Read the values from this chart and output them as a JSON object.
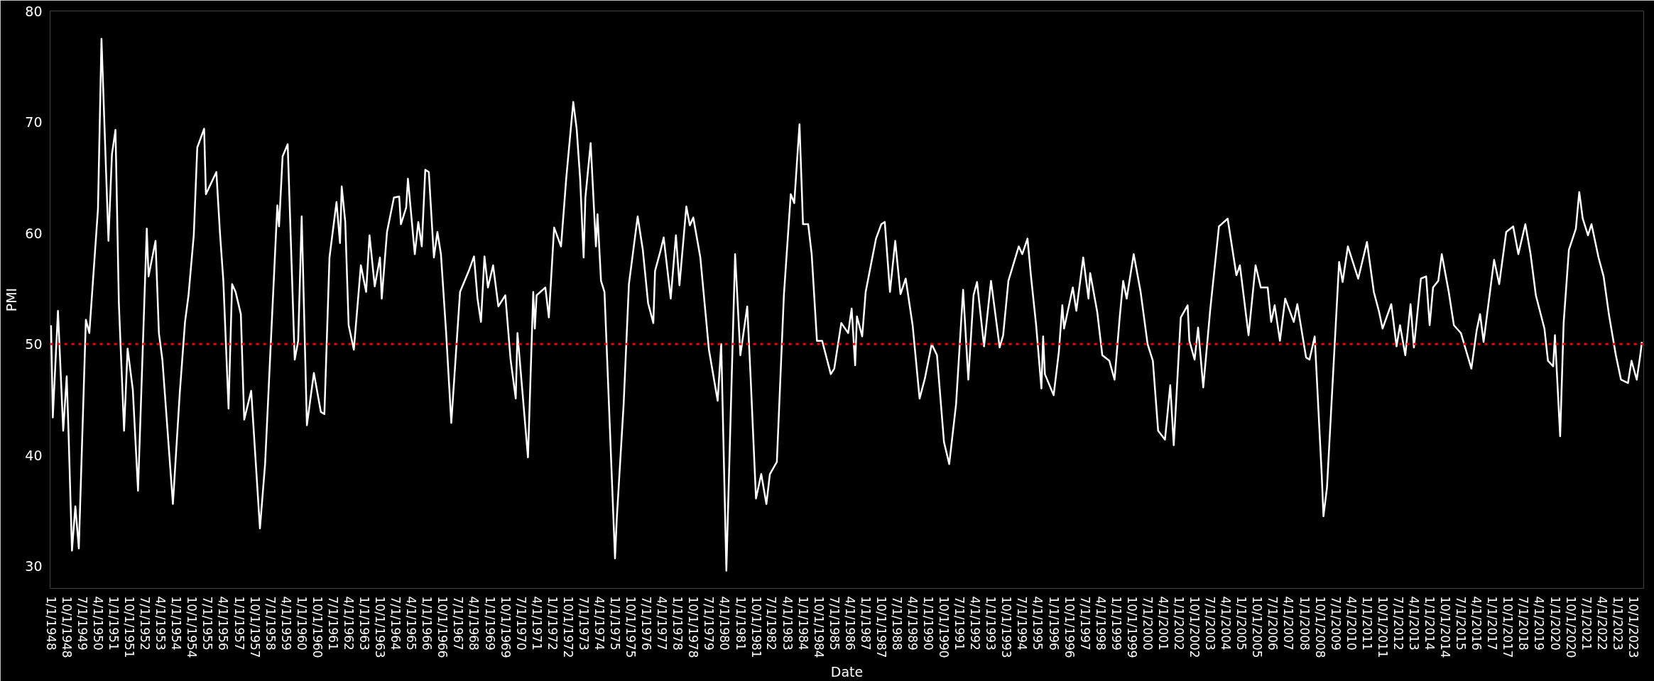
{
  "chart_data": {
    "type": "line",
    "xlabel": "Date",
    "ylabel": "PMI",
    "x": [
      "1948-01",
      "1948-02",
      "1948-05",
      "1948-08",
      "1948-10",
      "1948-11",
      "1949-01",
      "1949-03",
      "1949-05",
      "1949-09",
      "1949-11",
      "1950-04",
      "1950-06",
      "1950-10",
      "1950-12",
      "1951-02",
      "1951-04",
      "1951-07",
      "1951-09",
      "1951-12",
      "1952-03",
      "1952-08",
      "1952-09",
      "1953-01",
      "1953-03",
      "1953-05",
      "1953-11",
      "1954-03",
      "1954-06",
      "1954-08",
      "1954-11",
      "1955-01",
      "1955-05",
      "1955-06",
      "1955-12",
      "1956-02",
      "1956-04",
      "1956-07",
      "1956-09",
      "1956-11",
      "1957-02",
      "1957-04",
      "1957-08",
      "1958-01",
      "1958-04",
      "1958-11",
      "1958-12",
      "1959-02",
      "1959-05",
      "1959-09",
      "1959-11",
      "1960-01",
      "1960-04",
      "1960-08",
      "1960-12",
      "1961-02",
      "1961-05",
      "1961-09",
      "1961-11",
      "1961-12",
      "1962-02",
      "1962-04",
      "1962-07",
      "1962-11",
      "1963-02",
      "1963-04",
      "1963-07",
      "1963-10",
      "1963-11",
      "1964-02",
      "1964-06",
      "1964-09",
      "1964-10",
      "1965-01",
      "1965-02",
      "1965-06",
      "1965-08",
      "1965-10",
      "1965-12",
      "1966-02",
      "1966-05",
      "1966-07",
      "1966-09",
      "1966-12",
      "1967-03",
      "1967-08",
      "1968-01",
      "1968-04",
      "1968-06",
      "1968-08",
      "1968-10",
      "1968-12",
      "1969-03",
      "1969-06",
      "1969-10",
      "1970-01",
      "1970-04",
      "1970-05",
      "1970-11",
      "1971-02",
      "1971-03",
      "1971-04",
      "1971-09",
      "1971-11",
      "1972-02",
      "1972-06",
      "1972-09",
      "1973-01",
      "1973-03",
      "1973-05",
      "1973-07",
      "1973-08",
      "1973-11",
      "1974-02",
      "1974-03",
      "1974-05",
      "1974-07",
      "1975-01",
      "1975-02",
      "1975-06",
      "1975-09",
      "1976-02",
      "1976-05",
      "1976-08",
      "1976-11",
      "1976-12",
      "1977-03",
      "1977-05",
      "1977-09",
      "1977-12",
      "1978-02",
      "1978-06",
      "1978-08",
      "1978-10",
      "1979-02",
      "1979-07",
      "1979-12",
      "1980-02",
      "1980-05",
      "1980-10",
      "1981-01",
      "1981-05",
      "1981-07",
      "1981-10",
      "1982-01",
      "1982-04",
      "1982-06",
      "1982-10",
      "1983-02",
      "1983-06",
      "1983-08",
      "1983-11",
      "1984-01",
      "1984-04",
      "1984-06",
      "1984-09",
      "1984-12",
      "1985-05",
      "1985-07",
      "1985-11",
      "1986-03",
      "1986-05",
      "1986-07",
      "1986-08",
      "1986-11",
      "1987-01",
      "1987-04",
      "1987-07",
      "1987-10",
      "1987-12",
      "1988-03",
      "1988-06",
      "1988-09",
      "1988-12",
      "1989-04",
      "1989-08",
      "1989-11",
      "1990-03",
      "1990-06",
      "1990-10",
      "1991-01",
      "1991-05",
      "1991-09",
      "1991-12",
      "1992-03",
      "1992-05",
      "1992-09",
      "1993-01",
      "1993-06",
      "1993-08",
      "1993-11",
      "1994-05",
      "1994-07",
      "1994-10",
      "1994-12",
      "1995-03",
      "1995-06",
      "1995-07",
      "1995-08",
      "1996-01",
      "1996-04",
      "1996-06",
      "1996-07",
      "1996-12",
      "1997-02",
      "1997-06",
      "1997-09",
      "1997-10",
      "1998-02",
      "1998-05",
      "1998-09",
      "1998-12",
      "1999-03",
      "1999-05",
      "1999-07",
      "1999-11",
      "2000-03",
      "2000-07",
      "2000-10",
      "2001-01",
      "2001-05",
      "2001-08",
      "2001-10",
      "2002-02",
      "2002-06",
      "2002-07",
      "2002-10",
      "2002-12",
      "2003-03",
      "2003-07",
      "2003-12",
      "2004-05",
      "2004-10",
      "2004-12",
      "2005-05",
      "2005-09",
      "2005-12",
      "2006-04",
      "2006-06",
      "2006-08",
      "2006-11",
      "2007-02",
      "2007-07",
      "2007-09",
      "2008-02",
      "2008-04",
      "2008-07",
      "2008-11",
      "2008-12",
      "2009-02",
      "2009-09",
      "2009-11",
      "2010-02",
      "2010-08",
      "2011-01",
      "2011-05",
      "2011-08",
      "2011-10",
      "2012-03",
      "2012-06",
      "2012-08",
      "2012-11",
      "2013-02",
      "2013-04",
      "2013-08",
      "2013-11",
      "2014-01",
      "2014-03",
      "2014-06",
      "2014-08",
      "2014-12",
      "2015-03",
      "2015-07",
      "2016-01",
      "2016-04",
      "2016-06",
      "2016-08",
      "2017-02",
      "2017-05",
      "2017-09",
      "2018-01",
      "2018-04",
      "2018-08",
      "2018-11",
      "2019-02",
      "2019-07",
      "2019-09",
      "2019-12",
      "2020-01",
      "2020-04",
      "2020-06",
      "2020-09",
      "2021-01",
      "2021-03",
      "2021-05",
      "2021-08",
      "2021-10",
      "2022-02",
      "2022-05",
      "2022-08",
      "2022-12",
      "2023-03",
      "2023-07",
      "2023-09",
      "2023-12",
      "2024-02",
      "2024-03"
    ],
    "series": [
      {
        "color": "#ffffff",
        "values": [
          51.7,
          43.4,
          53.0,
          42.2,
          47.1,
          42.2,
          31.4,
          35.4,
          31.6,
          52.2,
          51.0,
          62.2,
          77.5,
          59.3,
          67.1,
          69.3,
          53.7,
          42.2,
          49.6,
          45.9,
          36.8,
          60.4,
          56.1,
          59.3,
          51.0,
          48.6,
          35.6,
          45.6,
          52.0,
          54.4,
          59.8,
          67.7,
          69.4,
          63.5,
          65.5,
          60.1,
          55.7,
          44.2,
          55.4,
          54.7,
          52.7,
          43.2,
          45.8,
          33.4,
          39.2,
          62.5,
          60.6,
          66.9,
          68.0,
          48.6,
          50.3,
          61.5,
          42.7,
          47.4,
          43.9,
          43.7,
          57.8,
          62.8,
          59.1,
          64.2,
          61.0,
          51.7,
          49.5,
          57.1,
          54.7,
          59.8,
          55.2,
          57.8,
          54.1,
          60.1,
          63.2,
          63.3,
          60.8,
          62.3,
          64.9,
          58.1,
          61.0,
          58.8,
          65.7,
          65.5,
          57.8,
          60.1,
          58.1,
          51.0,
          42.9,
          54.7,
          56.6,
          57.9,
          54.1,
          52.0,
          57.9,
          55.1,
          57.1,
          53.4,
          54.4,
          48.6,
          45.1,
          51.0,
          39.8,
          54.7,
          51.4,
          54.4,
          55.1,
          52.4,
          60.5,
          58.8,
          65.0,
          71.8,
          69.4,
          64.9,
          57.8,
          63.2,
          68.1,
          58.8,
          61.7,
          55.7,
          54.7,
          30.7,
          34.3,
          44.6,
          55.4,
          61.5,
          58.5,
          53.7,
          51.9,
          56.6,
          58.3,
          59.6,
          54.1,
          59.8,
          55.3,
          62.4,
          60.7,
          61.4,
          57.8,
          49.5,
          44.9,
          50.0,
          29.6,
          58.1,
          49.0,
          53.4,
          46.8,
          36.1,
          38.3,
          35.6,
          38.3,
          39.4,
          54.4,
          63.5,
          62.7,
          69.8,
          60.8,
          60.8,
          58.1,
          50.3,
          50.3,
          47.3,
          47.8,
          51.9,
          51.0,
          53.2,
          48.1,
          52.5,
          50.7,
          54.7,
          57.1,
          59.5,
          60.8,
          61.0,
          54.7,
          59.3,
          54.5,
          55.9,
          51.7,
          45.1,
          46.9,
          50.0,
          49.0,
          41.2,
          39.2,
          44.6,
          54.9,
          46.8,
          54.4,
          55.6,
          49.8,
          55.7,
          49.7,
          50.8,
          55.7,
          58.8,
          58.1,
          59.5,
          56.1,
          51.7,
          46.0,
          50.7,
          47.3,
          45.4,
          49.3,
          53.5,
          51.4,
          55.1,
          53.0,
          57.8,
          54.1,
          56.4,
          52.9,
          49.0,
          48.5,
          46.8,
          52.4,
          55.7,
          54.1,
          58.1,
          54.7,
          50.0,
          48.5,
          42.2,
          41.4,
          46.3,
          40.9,
          52.4,
          53.5,
          50.3,
          48.6,
          51.5,
          46.1,
          53.1,
          60.6,
          61.3,
          56.2,
          57.1,
          50.8,
          57.1,
          55.1,
          55.1,
          52.0,
          53.5,
          50.3,
          54.1,
          52.0,
          53.6,
          48.8,
          48.6,
          50.7,
          38.2,
          34.5,
          37.1,
          57.4,
          55.6,
          58.8,
          55.9,
          59.2,
          54.7,
          52.9,
          51.4,
          53.6,
          49.8,
          51.7,
          49.0,
          53.6,
          49.7,
          55.9,
          56.1,
          51.7,
          55.1,
          55.7,
          58.1,
          54.7,
          51.7,
          51.0,
          47.8,
          51.2,
          52.7,
          50.2,
          57.6,
          55.4,
          60.1,
          60.6,
          58.1,
          60.8,
          58.1,
          54.4,
          51.4,
          48.5,
          48.0,
          50.8,
          41.7,
          51.9,
          58.5,
          60.4,
          63.7,
          61.3,
          59.8,
          60.8,
          57.8,
          56.1,
          52.7,
          49.0,
          46.8,
          46.5,
          48.5,
          46.8,
          49.0,
          50.2
        ]
      }
    ],
    "xlim": [
      "1947-12-15",
      "2024-04-01"
    ],
    "ylim": [
      28,
      80
    ],
    "yticks": [
      30,
      40,
      50,
      60,
      70,
      80
    ],
    "xticks": [
      {
        "value": "1948-01-01",
        "label": "1/1/1948"
      },
      {
        "value": "1948-10-01",
        "label": "10/1/1948"
      },
      {
        "value": "1949-07-01",
        "label": "7/1/1949"
      },
      {
        "value": "1950-04-01",
        "label": "4/1/1950"
      },
      {
        "value": "1951-01-01",
        "label": "1/1/1951"
      },
      {
        "value": "1951-10-01",
        "label": "10/1/1951"
      },
      {
        "value": "1952-07-01",
        "label": "7/1/1952"
      },
      {
        "value": "1953-04-01",
        "label": "4/1/1953"
      },
      {
        "value": "1954-01-01",
        "label": "1/1/1954"
      },
      {
        "value": "1954-10-01",
        "label": "10/1/1954"
      },
      {
        "value": "1955-07-01",
        "label": "7/1/1955"
      },
      {
        "value": "1956-04-01",
        "label": "4/1/1956"
      },
      {
        "value": "1957-01-01",
        "label": "1/1/1957"
      },
      {
        "value": "1957-10-01",
        "label": "10/1/1957"
      },
      {
        "value": "1958-07-01",
        "label": "7/1/1958"
      },
      {
        "value": "1959-04-01",
        "label": "4/1/1959"
      },
      {
        "value": "1960-01-01",
        "label": "1/1/1960"
      },
      {
        "value": "1960-10-01",
        "label": "10/1/1960"
      },
      {
        "value": "1961-07-01",
        "label": "7/1/1961"
      },
      {
        "value": "1962-04-01",
        "label": "4/1/1962"
      },
      {
        "value": "1963-01-01",
        "label": "1/1/1963"
      },
      {
        "value": "1963-10-01",
        "label": "10/1/1963"
      },
      {
        "value": "1964-07-01",
        "label": "7/1/1964"
      },
      {
        "value": "1965-04-01",
        "label": "4/1/1965"
      },
      {
        "value": "1966-01-01",
        "label": "1/1/1966"
      },
      {
        "value": "1966-10-01",
        "label": "10/1/1966"
      },
      {
        "value": "1967-07-01",
        "label": "7/1/1967"
      },
      {
        "value": "1968-04-01",
        "label": "4/1/1968"
      },
      {
        "value": "1969-01-01",
        "label": "1/1/1969"
      },
      {
        "value": "1969-10-01",
        "label": "10/1/1969"
      },
      {
        "value": "1970-07-01",
        "label": "7/1/1970"
      },
      {
        "value": "1971-04-01",
        "label": "4/1/1971"
      },
      {
        "value": "1972-01-01",
        "label": "1/1/1972"
      },
      {
        "value": "1972-10-01",
        "label": "10/1/1972"
      },
      {
        "value": "1973-07-01",
        "label": "7/1/1973"
      },
      {
        "value": "1974-04-01",
        "label": "4/1/1974"
      },
      {
        "value": "1975-01-01",
        "label": "1/1/1975"
      },
      {
        "value": "1975-10-01",
        "label": "10/1/1975"
      },
      {
        "value": "1976-07-01",
        "label": "7/1/1976"
      },
      {
        "value": "1977-04-01",
        "label": "4/1/1977"
      },
      {
        "value": "1978-01-01",
        "label": "1/1/1978"
      },
      {
        "value": "1978-10-01",
        "label": "10/1/1978"
      },
      {
        "value": "1979-07-01",
        "label": "7/1/1979"
      },
      {
        "value": "1980-04-01",
        "label": "4/1/1980"
      },
      {
        "value": "1981-01-01",
        "label": "1/1/1981"
      },
      {
        "value": "1981-10-01",
        "label": "10/1/1981"
      },
      {
        "value": "1982-07-01",
        "label": "7/1/1982"
      },
      {
        "value": "1983-04-01",
        "label": "4/1/1983"
      },
      {
        "value": "1984-01-01",
        "label": "1/1/1984"
      },
      {
        "value": "1984-10-01",
        "label": "10/1/1984"
      },
      {
        "value": "1985-07-01",
        "label": "7/1/1985"
      },
      {
        "value": "1986-04-01",
        "label": "4/1/1986"
      },
      {
        "value": "1987-01-01",
        "label": "1/1/1987"
      },
      {
        "value": "1987-10-01",
        "label": "10/1/1987"
      },
      {
        "value": "1988-07-01",
        "label": "7/1/1988"
      },
      {
        "value": "1989-04-01",
        "label": "4/1/1989"
      },
      {
        "value": "1990-01-01",
        "label": "1/1/1990"
      },
      {
        "value": "1990-10-01",
        "label": "10/1/1990"
      },
      {
        "value": "1991-07-01",
        "label": "7/1/1991"
      },
      {
        "value": "1992-04-01",
        "label": "4/1/1992"
      },
      {
        "value": "1993-01-01",
        "label": "1/1/1993"
      },
      {
        "value": "1993-10-01",
        "label": "10/1/1993"
      },
      {
        "value": "1994-07-01",
        "label": "7/1/1994"
      },
      {
        "value": "1995-04-01",
        "label": "4/1/1995"
      },
      {
        "value": "1996-01-01",
        "label": "1/1/1996"
      },
      {
        "value": "1996-10-01",
        "label": "10/1/1996"
      },
      {
        "value": "1997-07-01",
        "label": "7/1/1997"
      },
      {
        "value": "1998-04-01",
        "label": "4/1/1998"
      },
      {
        "value": "1999-01-01",
        "label": "1/1/1999"
      },
      {
        "value": "1999-10-01",
        "label": "10/1/1999"
      },
      {
        "value": "2000-07-01",
        "label": "7/1/2000"
      },
      {
        "value": "2001-04-01",
        "label": "4/1/2001"
      },
      {
        "value": "2002-01-01",
        "label": "1/1/2002"
      },
      {
        "value": "2002-10-01",
        "label": "10/1/2002"
      },
      {
        "value": "2003-07-01",
        "label": "7/1/2003"
      },
      {
        "value": "2004-04-01",
        "label": "4/1/2004"
      },
      {
        "value": "2005-01-01",
        "label": "1/1/2005"
      },
      {
        "value": "2005-10-01",
        "label": "10/1/2005"
      },
      {
        "value": "2006-07-01",
        "label": "7/1/2006"
      },
      {
        "value": "2007-04-01",
        "label": "4/1/2007"
      },
      {
        "value": "2008-01-01",
        "label": "1/1/2008"
      },
      {
        "value": "2008-10-01",
        "label": "10/1/2008"
      },
      {
        "value": "2009-07-01",
        "label": "7/1/2009"
      },
      {
        "value": "2010-04-01",
        "label": "4/1/2010"
      },
      {
        "value": "2011-01-01",
        "label": "1/1/2011"
      },
      {
        "value": "2011-10-01",
        "label": "10/1/2011"
      },
      {
        "value": "2012-07-01",
        "label": "7/1/2012"
      },
      {
        "value": "2013-04-01",
        "label": "4/1/2013"
      },
      {
        "value": "2014-01-01",
        "label": "1/1/2014"
      },
      {
        "value": "2014-10-01",
        "label": "10/1/2014"
      },
      {
        "value": "2015-07-01",
        "label": "7/1/2015"
      },
      {
        "value": "2016-04-01",
        "label": "4/1/2016"
      },
      {
        "value": "2017-01-01",
        "label": "1/1/2017"
      },
      {
        "value": "2017-10-01",
        "label": "10/1/2017"
      },
      {
        "value": "2018-07-01",
        "label": "7/1/2018"
      },
      {
        "value": "2019-04-01",
        "label": "4/1/2019"
      },
      {
        "value": "2020-01-01",
        "label": "1/1/2020"
      },
      {
        "value": "2020-10-01",
        "label": "10/1/2020"
      },
      {
        "value": "2021-07-01",
        "label": "7/1/2021"
      },
      {
        "value": "2022-04-01",
        "label": "4/1/2022"
      },
      {
        "value": "2023-01-01",
        "label": "1/1/2023"
      },
      {
        "value": "2023-10-01",
        "label": "10/1/2023"
      }
    ],
    "ref_lines": [
      {
        "axis": "y",
        "value": 50,
        "color": "#ff0000",
        "line_style": "dotted"
      }
    ]
  }
}
